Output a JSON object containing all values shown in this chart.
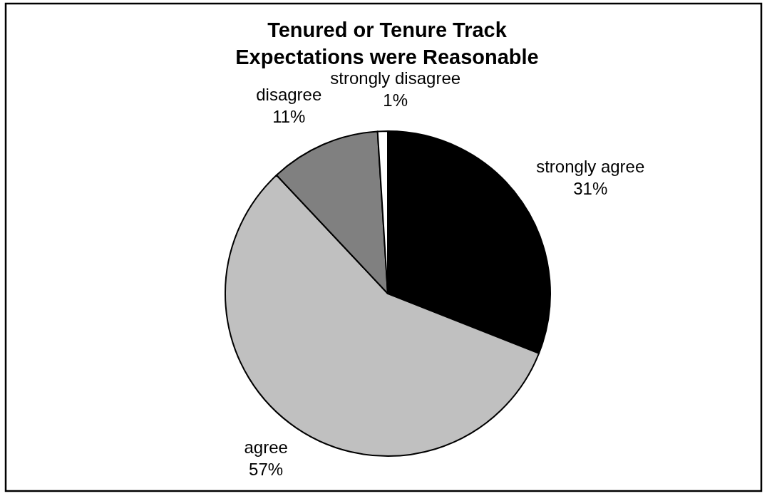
{
  "chart_data": {
    "type": "pie",
    "title": "Tenured or Tenure Track Expectations were Reasonable",
    "categories": [
      "strongly agree",
      "agree",
      "disagree",
      "strongly disagree"
    ],
    "values": [
      31,
      57,
      11,
      1
    ],
    "colors": [
      "#000000",
      "#c0c0c0",
      "#808080",
      "#ffffff"
    ],
    "value_labels": [
      "31%",
      "57%",
      "11%",
      "1%"
    ]
  }
}
